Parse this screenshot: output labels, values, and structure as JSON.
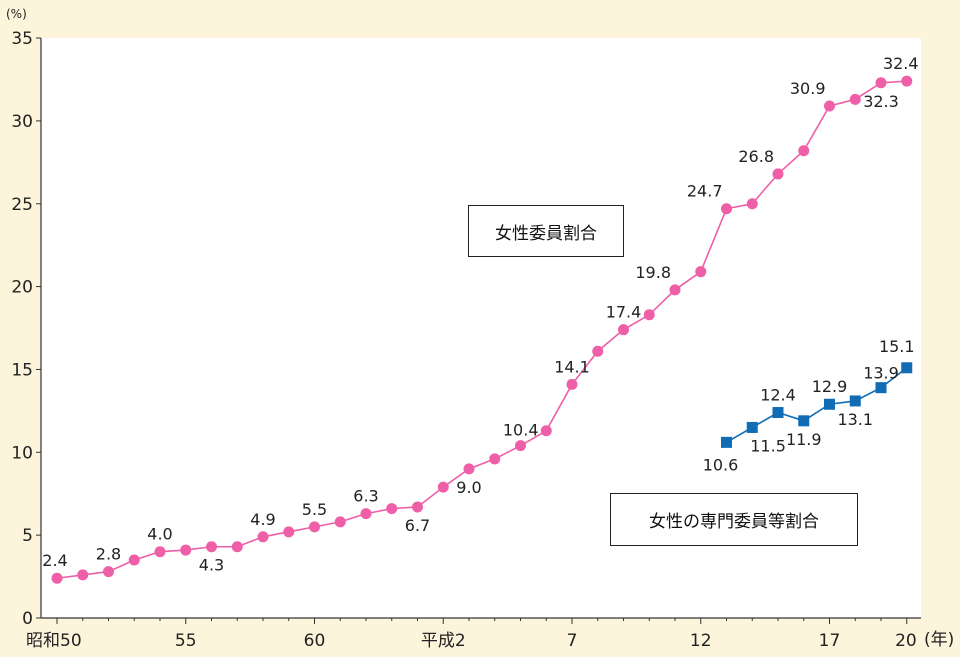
{
  "chart_data": {
    "type": "line",
    "y_unit": "(%)",
    "x_unit": "(年)",
    "ylim": [
      0,
      35
    ],
    "yticks": [
      "0",
      "5",
      "10",
      "15",
      "20",
      "25",
      "30",
      "35"
    ],
    "x_ticks": [
      {
        "x": 0,
        "label": "昭和50"
      },
      {
        "x": 5,
        "label": "55"
      },
      {
        "x": 10,
        "label": "60"
      },
      {
        "x": 15,
        "label": "平成2"
      },
      {
        "x": 20,
        "label": "7"
      },
      {
        "x": 25,
        "label": "12"
      },
      {
        "x": 30,
        "label": "17"
      },
      {
        "x": 33,
        "label": "20"
      }
    ],
    "series": [
      {
        "name": "女性委員割合",
        "color": "#ee5fa7",
        "marker": "circle",
        "x": [
          0,
          1,
          2,
          3,
          4,
          5,
          6,
          7,
          8,
          9,
          10,
          11,
          12,
          13,
          14,
          15,
          16,
          17,
          18,
          19,
          20,
          21,
          22,
          23,
          24,
          25,
          26,
          27,
          28,
          29,
          30,
          31,
          32,
          33
        ],
        "values": [
          2.4,
          2.6,
          2.8,
          3.5,
          4.0,
          4.1,
          4.3,
          4.3,
          4.9,
          5.2,
          5.5,
          5.8,
          6.3,
          6.6,
          6.7,
          7.9,
          9.0,
          9.6,
          10.4,
          11.3,
          14.1,
          16.1,
          17.4,
          18.3,
          19.8,
          20.9,
          24.7,
          25.0,
          26.8,
          28.2,
          30.9,
          31.3,
          32.3,
          32.4
        ],
        "labels": [
          {
            "i": 0,
            "text": "2.4",
            "pos": "above"
          },
          {
            "i": 2,
            "text": "2.8",
            "pos": "above"
          },
          {
            "i": 4,
            "text": "4.0",
            "pos": "above"
          },
          {
            "i": 6,
            "text": "4.3",
            "pos": "below"
          },
          {
            "i": 8,
            "text": "4.9",
            "pos": "above"
          },
          {
            "i": 10,
            "text": "5.5",
            "pos": "above"
          },
          {
            "i": 12,
            "text": "6.3",
            "pos": "above"
          },
          {
            "i": 14,
            "text": "6.7",
            "pos": "below"
          },
          {
            "i": 16,
            "text": "9.0",
            "pos": "below"
          },
          {
            "i": 18,
            "text": "10.4",
            "pos": "above-right"
          },
          {
            "i": 20,
            "text": "14.1",
            "pos": "above"
          },
          {
            "i": 22,
            "text": "17.4",
            "pos": "above"
          },
          {
            "i": 24,
            "text": "19.8",
            "pos": "above-left"
          },
          {
            "i": 26,
            "text": "24.7",
            "pos": "above-left"
          },
          {
            "i": 28,
            "text": "26.8",
            "pos": "above-left"
          },
          {
            "i": 30,
            "text": "30.9",
            "pos": "above-left"
          },
          {
            "i": 32,
            "text": "32.3",
            "pos": "below"
          },
          {
            "i": 33,
            "text": "32.4",
            "pos": "above"
          }
        ]
      },
      {
        "name": "女性の専門委員等割合",
        "color": "#0f6cb5",
        "marker": "square",
        "x": [
          26,
          27,
          28,
          29,
          30,
          31,
          32,
          33
        ],
        "values": [
          10.6,
          11.5,
          12.4,
          11.9,
          12.9,
          13.1,
          13.9,
          15.1
        ],
        "labels": [
          {
            "i": 0,
            "text": "10.6",
            "pos": "below"
          },
          {
            "i": 1,
            "text": "11.5",
            "pos": "below-right"
          },
          {
            "i": 2,
            "text": "12.4",
            "pos": "above"
          },
          {
            "i": 3,
            "text": "11.9",
            "pos": "below"
          },
          {
            "i": 4,
            "text": "12.9",
            "pos": "above"
          },
          {
            "i": 5,
            "text": "13.1",
            "pos": "below"
          },
          {
            "i": 6,
            "text": "13.9",
            "pos": "above-left"
          },
          {
            "i": 7,
            "text": "15.1",
            "pos": "above"
          }
        ]
      }
    ],
    "legend": [
      {
        "text": "女性委員割合"
      },
      {
        "text": "女性の専門委員等割合"
      }
    ]
  }
}
